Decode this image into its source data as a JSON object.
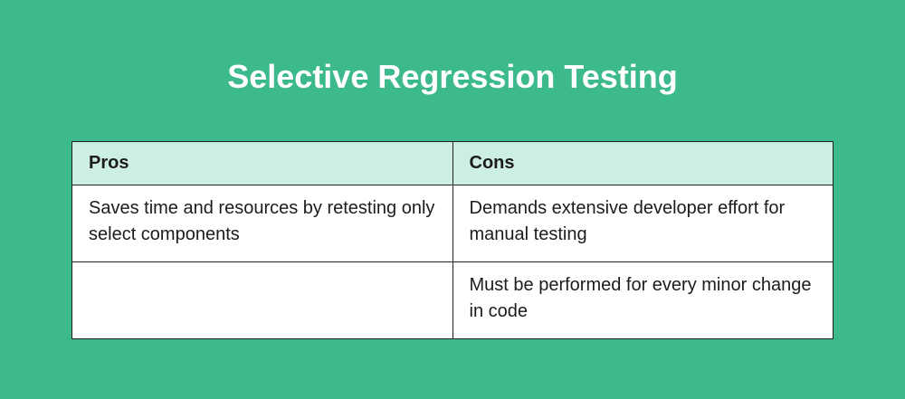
{
  "title": "Selective Regression Testing",
  "table": {
    "headers": [
      "Pros",
      "Cons"
    ],
    "rows": [
      [
        "Saves time and resources by retesting only select components",
        "Demands extensive developer effort for manual testing"
      ],
      [
        "",
        "Must be performed for every minor change in code"
      ]
    ]
  },
  "colors": {
    "background": "#3dba8b",
    "header": "#cdeee2"
  }
}
